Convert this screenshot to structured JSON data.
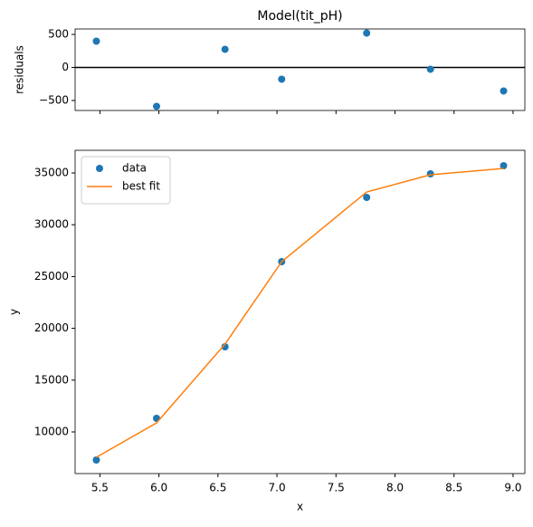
{
  "chart_data": [
    {
      "type": "scatter",
      "title": "Model(tit_pH)",
      "y_label": "residuals",
      "xlim": [
        5.29,
        9.1
      ],
      "xticks": [
        5.5,
        6.0,
        6.5,
        7.0,
        7.5,
        8.0,
        8.5,
        9.0
      ],
      "ylim": [
        -651,
        582
      ],
      "yticks": [
        {
          "value": -500,
          "label": "−500"
        },
        0,
        500
      ],
      "zero_line": true,
      "series": [
        {
          "type": "scatter",
          "color": "#1f77b4",
          "x": [
            5.47,
            5.98,
            6.56,
            7.04,
            7.76,
            8.3,
            8.92
          ],
          "values": [
            397,
            -589,
            274,
            -178,
            520,
            -27,
            -356
          ]
        }
      ]
    },
    {
      "type": "scatter",
      "x_label": "x",
      "y_label": "y",
      "xlim": [
        5.29,
        9.1
      ],
      "xticks": [
        {
          "value": 5.5,
          "label": "5.5"
        },
        {
          "value": 6.0,
          "label": "6.0"
        },
        {
          "value": 6.5,
          "label": "6.5"
        },
        {
          "value": 7.0,
          "label": "7.0"
        },
        {
          "value": 7.5,
          "label": "7.5"
        },
        {
          "value": 8.0,
          "label": "8.0"
        },
        {
          "value": 8.5,
          "label": "8.5"
        },
        {
          "value": 9.0,
          "label": "9.0"
        }
      ],
      "ylim": [
        5979,
        37185
      ],
      "yticks": [
        10000,
        15000,
        20000,
        25000,
        30000,
        35000
      ],
      "legend": "upper left",
      "series": [
        {
          "name": "data",
          "type": "scatter",
          "color": "#1f77b4",
          "x": [
            5.47,
            5.98,
            6.56,
            7.04,
            7.76,
            8.3,
            8.92
          ],
          "values": [
            7290,
            11311,
            18217,
            26434,
            32640,
            34913,
            35700
          ]
        },
        {
          "name": "best fit",
          "type": "line",
          "color": "#ff7f0e",
          "x": [
            5.47,
            5.98,
            6.56,
            7.04,
            7.76,
            8.3,
            8.92
          ],
          "values": [
            7552,
            10874,
            18478,
            26434,
            33164,
            34825,
            35437
          ]
        }
      ]
    }
  ]
}
